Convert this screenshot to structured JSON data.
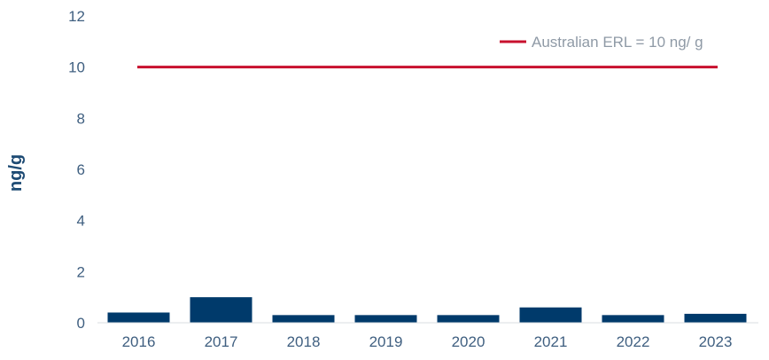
{
  "chart_data": {
    "type": "bar",
    "title": "",
    "xlabel": "",
    "ylabel": "ng/g",
    "categories": [
      "2016",
      "2017",
      "2018",
      "2019",
      "2020",
      "2021",
      "2022",
      "2023"
    ],
    "values": [
      0.4,
      1.0,
      0.3,
      0.3,
      0.3,
      0.6,
      0.3,
      0.35
    ],
    "ylim": [
      0,
      12
    ],
    "yticks": [
      0,
      2,
      4,
      6,
      8,
      10,
      12
    ],
    "grid": false,
    "bar_color": "#003a6b",
    "reference_line": {
      "label": "Australian ERL = 10 ng/ g",
      "value": 10,
      "color": "#c8102e"
    },
    "legend_position": "top-right"
  }
}
